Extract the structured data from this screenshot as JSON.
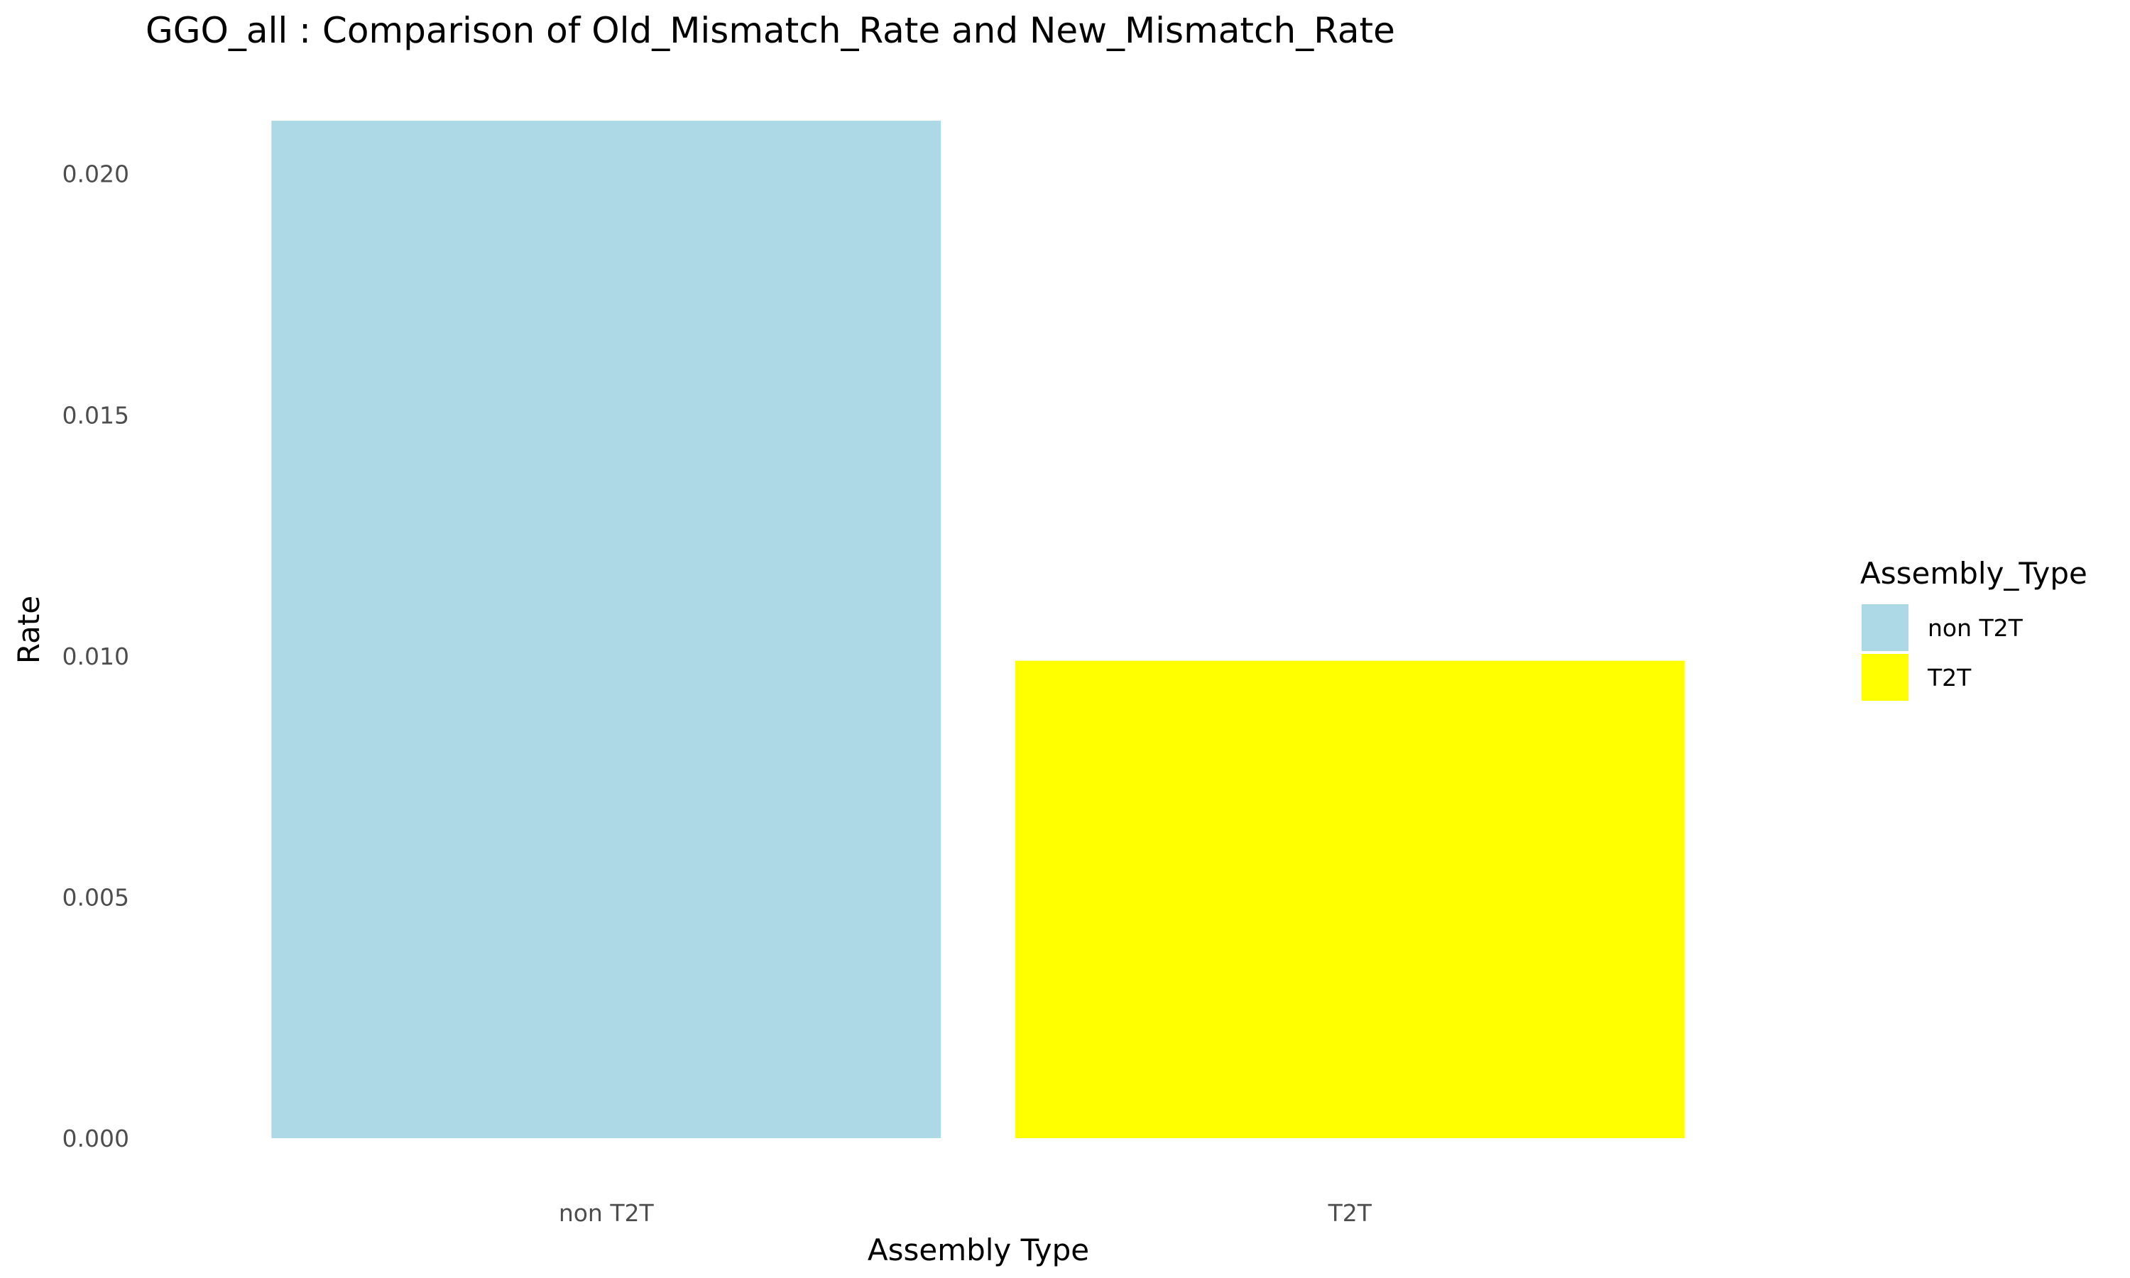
{
  "chart_data": {
    "type": "bar",
    "title": "GGO_all : Comparison of Old_Mismatch_Rate and New_Mismatch_Rate",
    "xlabel": "Assembly Type",
    "ylabel": "Rate",
    "categories": [
      "non T2T",
      "T2T"
    ],
    "values": [
      0.0211,
      0.0099
    ],
    "colors": [
      "#add8e6",
      "#ffff00"
    ],
    "ylim": [
      0,
      0.0211
    ],
    "yticks": [
      0.0,
      0.005,
      0.01,
      0.015,
      0.02
    ],
    "ytick_labels": [
      "0.000",
      "0.005",
      "0.010",
      "0.015",
      "0.020"
    ],
    "grid": false,
    "legend": {
      "title": "Assembly_Type",
      "position": "right",
      "entries": [
        {
          "label": "non T2T",
          "color": "#add8e6"
        },
        {
          "label": "T2T",
          "color": "#ffff00"
        }
      ]
    }
  }
}
